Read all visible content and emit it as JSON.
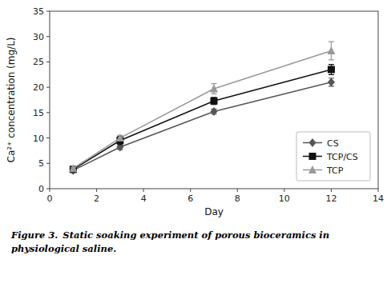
{
  "chart_data": {
    "type": "line",
    "x_label": "Day",
    "y_label": "Ca²⁺ concentration (mg/L)",
    "annotations": [
      "Figure 3.",
      "Static soaking experiment of porous bioceramics in\nphysiological saline."
    ],
    "x": [
      1,
      3,
      7,
      12
    ],
    "series": [
      {
        "name": "CS",
        "color": "#555555",
        "marker": "diamond",
        "values": [
          3.6,
          8.2,
          15.2,
          21.0
        ],
        "errors": [
          0.15,
          0.5,
          0.5,
          0.8
        ]
      },
      {
        "name": "TCP/CS",
        "color": "#111111",
        "marker": "square",
        "values": [
          3.8,
          9.5,
          17.3,
          23.5
        ],
        "errors": [
          0.15,
          0.8,
          0.7,
          1.0
        ]
      },
      {
        "name": "TCP",
        "color": "#999999",
        "marker": "triangle",
        "values": [
          4.0,
          10.0,
          19.7,
          27.2
        ],
        "errors": [
          0.15,
          0.5,
          1.0,
          1.8
        ]
      }
    ],
    "xlim": [
      0,
      14
    ],
    "ylim": [
      0,
      35
    ],
    "xticks": [
      0,
      2,
      4,
      6,
      8,
      10,
      12,
      14
    ],
    "yticks": [
      0,
      5,
      10,
      15,
      20,
      25,
      30,
      35
    ],
    "grid": false,
    "legend": "lower right"
  }
}
